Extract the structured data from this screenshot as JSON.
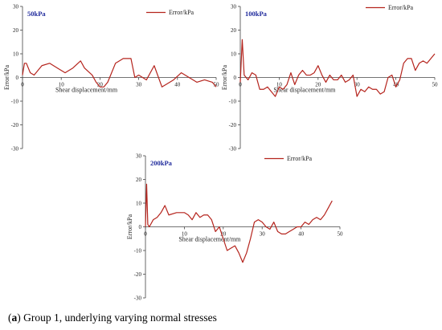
{
  "caption": {
    "letter": "a",
    "text": " Group 1, underlying varying normal stresses"
  },
  "chart_data": [
    {
      "type": "line",
      "title": "50kPa",
      "xlabel": "Shear displacement/mm",
      "ylabel": "Error/kPa",
      "legend": "Error/kPa",
      "legend_position": "top-right",
      "xlim": [
        0,
        50
      ],
      "ylim": [
        -30,
        30
      ],
      "xticks": [
        0,
        10,
        20,
        30,
        40,
        50
      ],
      "yticks": [
        -30,
        -20,
        -10,
        0,
        10,
        20,
        30
      ],
      "line_color": "#b5241d",
      "x": [
        0,
        0.5,
        1,
        2,
        3,
        5,
        7,
        9,
        11,
        13,
        15,
        16,
        18,
        19,
        20,
        21,
        22,
        23,
        24,
        25,
        26,
        27,
        28,
        29,
        30,
        32,
        34,
        36,
        37,
        39,
        41,
        43,
        45,
        47,
        49,
        50
      ],
      "values": [
        1,
        6,
        6,
        2,
        1,
        5,
        6,
        4,
        2,
        4,
        7,
        4,
        1,
        -2,
        -4,
        -4,
        -2,
        2,
        6,
        7,
        8,
        8,
        8,
        0,
        1,
        -1,
        5,
        -4,
        -3,
        -1,
        2,
        0,
        -2,
        -1,
        -2,
        -4
      ]
    },
    {
      "type": "line",
      "title": "100kPa",
      "xlabel": "Shear displacement/mm",
      "ylabel": "Error/kPa",
      "legend": "Error/kPa",
      "legend_position": "top-right",
      "xlim": [
        0,
        50
      ],
      "ylim": [
        -30,
        30
      ],
      "xticks": [
        0,
        10,
        20,
        30,
        40,
        50
      ],
      "yticks": [
        -30,
        -20,
        -10,
        0,
        10,
        20,
        30
      ],
      "line_color": "#b5241d",
      "x": [
        0,
        0.5,
        1,
        2,
        3,
        4,
        5,
        6,
        7,
        8,
        9,
        10,
        11,
        12,
        13,
        14,
        15,
        16,
        17,
        18,
        19,
        20,
        21,
        22,
        23,
        24,
        25,
        26,
        27,
        28,
        29,
        30,
        31,
        32,
        33,
        34,
        35,
        36,
        37,
        38,
        39,
        40,
        41,
        42,
        43,
        44,
        45,
        46,
        47,
        48,
        49,
        50
      ],
      "values": [
        -2,
        16,
        1,
        -1,
        2,
        1,
        -5,
        -5,
        -4,
        -6,
        -8,
        -4,
        -5,
        -3,
        2,
        -3,
        1,
        3,
        1,
        1,
        2,
        5,
        1,
        -2,
        1,
        -1,
        -1,
        1,
        -2,
        -1,
        1,
        -8,
        -5,
        -6,
        -4,
        -5,
        -5,
        -7,
        -6,
        0,
        1,
        -4,
        -1,
        6,
        8,
        8,
        3,
        6,
        7,
        6,
        8,
        10
      ]
    },
    {
      "type": "line",
      "title": "200kPa",
      "xlabel": "Shear displacement/mm",
      "ylabel": "Error/kPa",
      "legend": "Error/kPa",
      "legend_position": "top-right",
      "xlim": [
        0,
        50
      ],
      "ylim": [
        -30,
        30
      ],
      "xticks": [
        0,
        10,
        20,
        30,
        40,
        50
      ],
      "yticks": [
        -30,
        -20,
        -10,
        0,
        10,
        20,
        30
      ],
      "line_color": "#b5241d",
      "x": [
        0,
        0.3,
        0.6,
        1,
        2,
        3,
        4,
        5,
        6,
        8,
        10,
        11,
        12,
        13,
        14,
        15,
        16,
        17,
        18,
        19,
        20,
        21,
        22,
        23,
        24,
        25,
        26,
        27,
        28,
        29,
        30,
        31,
        32,
        33,
        34,
        35,
        36,
        37,
        38,
        39,
        40,
        41,
        42,
        43,
        44,
        45,
        46,
        47,
        48
      ],
      "values": [
        0,
        18,
        1,
        0,
        3,
        4,
        6,
        9,
        5,
        6,
        6,
        5,
        3,
        6,
        4,
        5,
        5,
        3,
        -2,
        0,
        -5,
        -10,
        -9,
        -8,
        -11,
        -15,
        -11,
        -5,
        2,
        3,
        2,
        0,
        -1,
        2,
        -2,
        -3,
        -3,
        -2,
        -1,
        0,
        0,
        2,
        1,
        3,
        4,
        3,
        5,
        8,
        11
      ]
    }
  ]
}
